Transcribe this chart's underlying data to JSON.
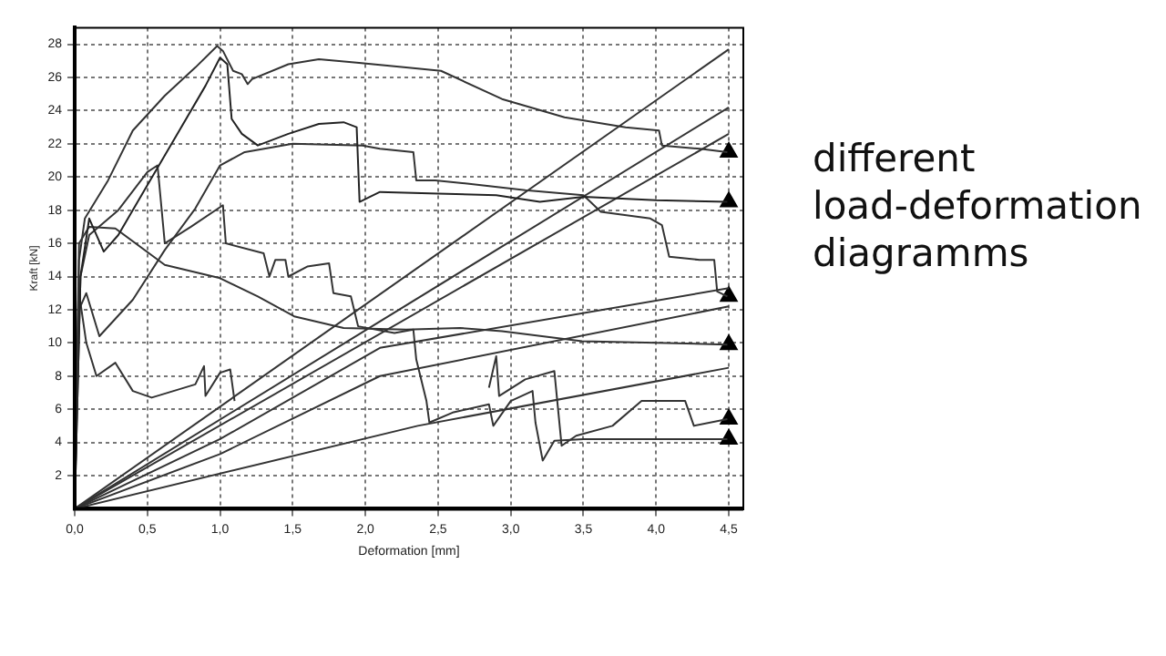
{
  "chart_data": {
    "type": "line",
    "title": "different load-deformation diagramms",
    "xlabel": "Deformation [mm]",
    "ylabel": "Kraft [kN]",
    "xlim": [
      0,
      4.6
    ],
    "ylim": [
      0,
      29
    ],
    "xticks": [
      {
        "value": 0,
        "label": "0,0"
      },
      {
        "value": 0.5,
        "label": "0,5"
      },
      {
        "value": 1,
        "label": "1,0"
      },
      {
        "value": 1.5,
        "label": "1,5"
      },
      {
        "value": 2,
        "label": "2,0"
      },
      {
        "value": 2.5,
        "label": "2,5"
      },
      {
        "value": 3,
        "label": "3,0"
      },
      {
        "value": 3.5,
        "label": "3,5"
      },
      {
        "value": 4,
        "label": "4,0"
      },
      {
        "value": 4.5,
        "label": "4,5"
      }
    ],
    "yticks": [
      2,
      4,
      6,
      8,
      10,
      12,
      14,
      16,
      18,
      20,
      22,
      24,
      26,
      28
    ],
    "grid": true,
    "legend": false,
    "marker": "none",
    "line_style": "solid",
    "series": [
      {
        "color": "#333333",
        "x": [
          0,
          0.03,
          0.07,
          0.23,
          0.4,
          0.62,
          0.83,
          0.98,
          1.02,
          1.09,
          1.15,
          1.19,
          1.22,
          1.47,
          1.68,
          1.94,
          2.28,
          2.52,
          2.94,
          3.37,
          3.79,
          4.02,
          4.04,
          4.3,
          4.49
        ],
        "values": [
          0,
          15,
          17.5,
          19.8,
          22.8,
          24.9,
          26.6,
          27.9,
          27.6,
          26.4,
          26.2,
          25.6,
          25.9,
          26.8,
          27.1,
          26.9,
          26.6,
          26.4,
          24.7,
          23.6,
          23,
          22.8,
          21.9,
          21.7,
          21.5
        ]
      },
      {
        "color": "#222222",
        "x": [
          0,
          0.04,
          0.1,
          0.2,
          0.3,
          0.5,
          0.7,
          0.9,
          1,
          1.05,
          1.08,
          1.15,
          1.26,
          1.47,
          1.68,
          1.85,
          1.94,
          1.96,
          2.1,
          2.5,
          2.9,
          3.2,
          3.5,
          4,
          4.49
        ],
        "values": [
          0,
          14,
          17.5,
          15.5,
          16.5,
          19.5,
          22.5,
          25.5,
          27.2,
          26.8,
          23.5,
          22.6,
          21.9,
          22.6,
          23.2,
          23.3,
          23,
          18.5,
          19.1,
          19,
          18.9,
          18.5,
          18.8,
          18.6,
          18.5
        ]
      },
      {
        "color": "#333333",
        "x": [
          0,
          0.03,
          0.08,
          0.17,
          0.4,
          0.62,
          0.83,
          1,
          1.17,
          1.5,
          1.98,
          2.1,
          2.33,
          2.35,
          2.48,
          2.7,
          3.1,
          3.5,
          3.62,
          3.96,
          4.04,
          4.09,
          4.3,
          4.4,
          4.42,
          4.49
        ],
        "values": [
          0,
          12,
          13,
          10.4,
          12.6,
          15.6,
          18.1,
          20.7,
          21.5,
          22,
          21.9,
          21.7,
          21.5,
          19.8,
          19.8,
          19.6,
          19.2,
          18.9,
          17.9,
          17.5,
          17.1,
          15.2,
          15,
          15,
          13.1,
          12.8
        ]
      },
      {
        "color": "#333333",
        "x": [
          0,
          0.04,
          0.1,
          0.3,
          0.5,
          0.57,
          0.62,
          0.8,
          1.02,
          1.04,
          1.3,
          1.34,
          1.38,
          1.45,
          1.47,
          1.6,
          1.75,
          1.78,
          1.9,
          1.95,
          2.2,
          2.33,
          2.35,
          2.42,
          2.44,
          2.6,
          2.85,
          2.88,
          3,
          3.15,
          3.17,
          3.22,
          3.3,
          3.5,
          4,
          4.49
        ],
        "values": [
          0,
          14,
          16.5,
          18,
          20.3,
          20.7,
          16,
          17,
          18.3,
          16,
          15.4,
          14,
          15,
          15,
          14,
          14.6,
          14.8,
          13,
          12.8,
          11,
          10.6,
          10.8,
          9,
          6.5,
          5.2,
          5.8,
          6.3,
          5,
          6.5,
          7.1,
          5.2,
          2.9,
          4.1,
          4.2,
          4.2,
          4.2
        ]
      },
      {
        "color": "#333333",
        "x": [
          0,
          0.03,
          0.1,
          0.28,
          0.62,
          1,
          1.26,
          1.51,
          1.85,
          2.28,
          2.65,
          2.94,
          3.49,
          4,
          4.49
        ],
        "values": [
          0,
          16,
          17,
          16.9,
          14.7,
          13.9,
          12.8,
          11.6,
          10.9,
          10.8,
          10.9,
          10.7,
          10.1,
          10,
          9.9
        ]
      },
      {
        "color": "#333333",
        "x": [
          0,
          0.03,
          0.08,
          0.15,
          0.28,
          0.4,
          0.53,
          0.83,
          0.89,
          0.9,
          1,
          1.07,
          1.1
        ],
        "values": [
          0,
          13,
          10,
          8,
          8.8,
          7.1,
          6.7,
          7.5,
          8.6,
          6.8,
          8.2,
          8.4,
          6.5
        ]
      },
      {
        "color": "#333333",
        "x": [
          2.85,
          2.9,
          2.92,
          3.1,
          3.3,
          3.35,
          3.45,
          3.7,
          3.9,
          4.2,
          4.26,
          4.49
        ],
        "values": [
          7.3,
          9.2,
          6.8,
          7.8,
          8.3,
          3.8,
          4.4,
          5,
          6.5,
          6.5,
          5,
          5.4
        ]
      },
      {
        "color": "#333333",
        "x": [
          0,
          4.5
        ],
        "values": [
          0,
          27.7
        ]
      },
      {
        "color": "#333333",
        "x": [
          0,
          4.5
        ],
        "values": [
          0,
          24.2
        ]
      },
      {
        "color": "#333333",
        "x": [
          0,
          4.5
        ],
        "values": [
          0,
          22.6
        ]
      },
      {
        "color": "#333333",
        "x": [
          0,
          1,
          2.1,
          4.5
        ],
        "values": [
          0,
          4.2,
          9.7,
          13.3
        ]
      },
      {
        "color": "#333333",
        "x": [
          0,
          1,
          2.1,
          4.5
        ],
        "values": [
          0,
          3.3,
          8,
          12.2
        ]
      },
      {
        "color": "#333333",
        "x": [
          0,
          2.36,
          4.5
        ],
        "values": [
          0,
          5,
          8.5
        ]
      },
      {
        "type": "scatter",
        "marker": "triangle",
        "color": "#000000",
        "x": [
          4.5,
          4.5,
          4.5,
          4.5,
          4.5,
          4.5
        ],
        "values": [
          21.5,
          18.5,
          12.8,
          9.9,
          5.4,
          4.2
        ]
      }
    ]
  }
}
